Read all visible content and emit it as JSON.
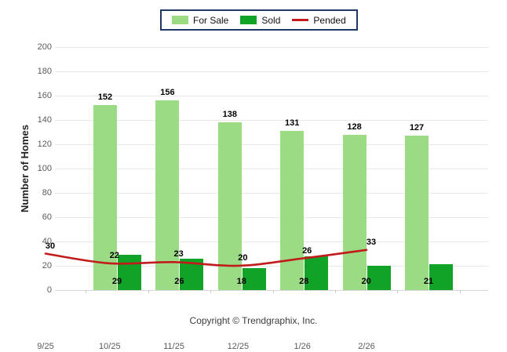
{
  "footer": {
    "copyright": "Copyright © Trendgraphix, Inc."
  },
  "chart_data": {
    "type": "bar",
    "categories": [
      "9/25",
      "10/25",
      "11/25",
      "12/25",
      "1/26",
      "2/26"
    ],
    "series": [
      {
        "name": "For Sale",
        "type": "bar",
        "color": "#9ADB83",
        "values": [
          152,
          156,
          138,
          131,
          128,
          127
        ]
      },
      {
        "name": "Sold",
        "type": "bar",
        "color": "#10A327",
        "values": [
          29,
          26,
          18,
          28,
          20,
          21
        ]
      },
      {
        "name": "Pended",
        "type": "line",
        "color": "#C11B1B",
        "values": [
          30,
          22,
          23,
          20,
          26,
          33
        ]
      }
    ],
    "ylabel": "Number of Homes",
    "xlabel": "",
    "ylim": [
      0,
      200
    ],
    "ytick_step": 20,
    "grid": true,
    "value_labels": true,
    "legend_position": "top-center",
    "legend_border_color": "#1F3864"
  }
}
